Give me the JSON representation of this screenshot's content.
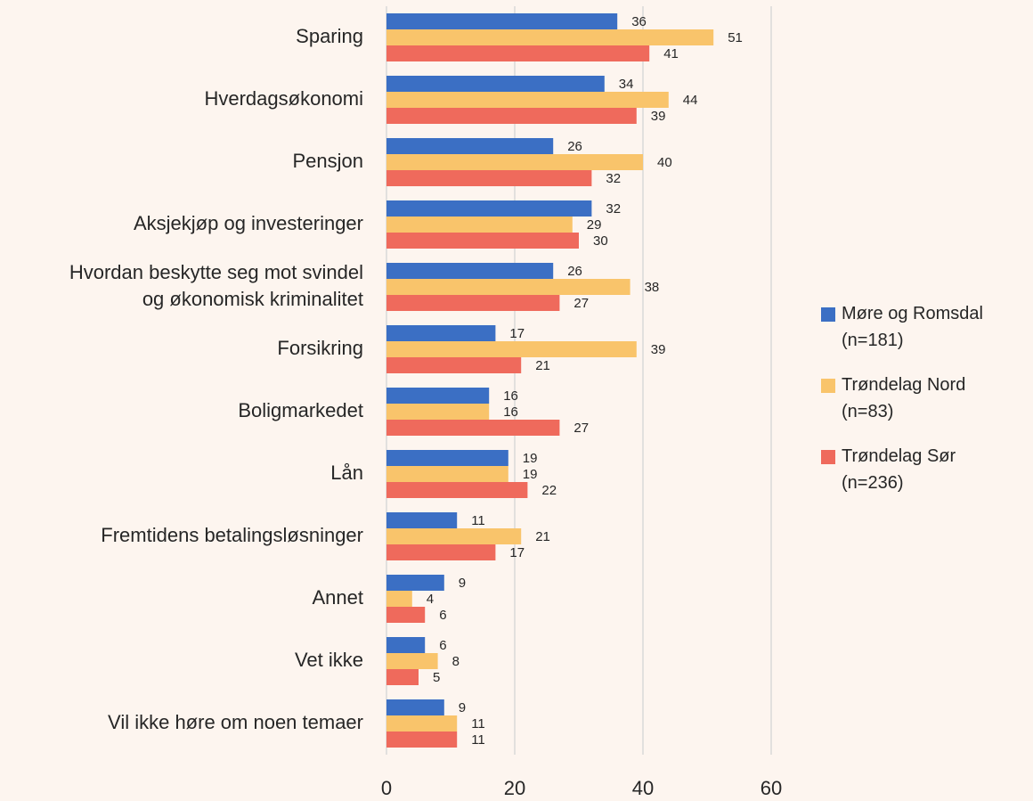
{
  "chart_data": {
    "type": "bar",
    "orientation": "horizontal",
    "categories": [
      "Sparing",
      "Hverdagsøkonomi",
      "Pensjon",
      "Aksjekjøp og investeringer",
      "Hvordan beskytte seg mot svindel\nog økonomisk kriminalitet",
      "Forsikring",
      "Boligmarkedet",
      "Lån",
      "Fremtidens betalingsløsninger",
      "Annet",
      "Vet ikke",
      "Vil ikke høre om noen temaer"
    ],
    "series": [
      {
        "name": "Møre og Romsdal\n(n=181)",
        "color": "#3b6fc4",
        "values": [
          36,
          34,
          26,
          32,
          26,
          17,
          16,
          19,
          11,
          9,
          6,
          9
        ]
      },
      {
        "name": "Trøndelag Nord\n(n=83)",
        "color": "#f9c46b",
        "values": [
          51,
          44,
          40,
          29,
          38,
          39,
          16,
          19,
          21,
          4,
          8,
          11
        ]
      },
      {
        "name": "Trøndelag Sør\n(n=236)",
        "color": "#ef6a5c",
        "values": [
          41,
          39,
          32,
          30,
          27,
          21,
          27,
          22,
          17,
          6,
          5,
          11
        ]
      }
    ],
    "xlim": [
      0,
      60
    ],
    "xticks": [
      0,
      20,
      40,
      60
    ],
    "grid": true,
    "legend": "right"
  }
}
